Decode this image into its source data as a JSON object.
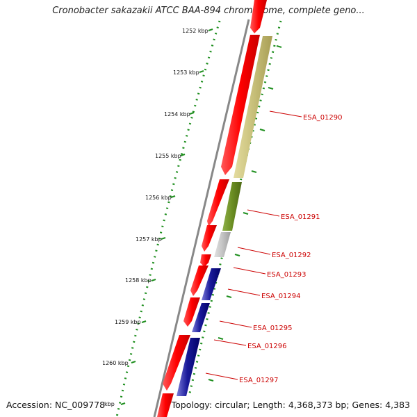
{
  "title": "Cronobacter sakazakii ATCC BAA-894 chromosome, complete geno...",
  "accession": "Accession: NC_009778",
  "topology": "Topology: circular; Length: 4,368,373 bp; Genes: 4,383",
  "ticks": [
    "1252 kbp",
    "1253 kbp",
    "1254 kbp",
    "1255 kbp",
    "1256 kbp",
    "1257 kbp",
    "1258 kbp",
    "1259 kbp",
    "1260 kbp",
    "kbp"
  ],
  "genes": [
    "ESA_01290",
    "ESA_01291",
    "ESA_01292",
    "ESA_01293",
    "ESA_01294",
    "ESA_01295",
    "ESA_01296",
    "ESA_01297"
  ],
  "colors": {
    "cds": "#ff0000",
    "gene_01290": "#c8c07a",
    "gene_01291": "#6b8e23",
    "gene_01292": "#bdbdbd",
    "gene_blue": "#000080",
    "gene_blue_light": "#6666cc",
    "backbone": "#888888",
    "tick": "#228b22",
    "label": "#cc0000"
  }
}
